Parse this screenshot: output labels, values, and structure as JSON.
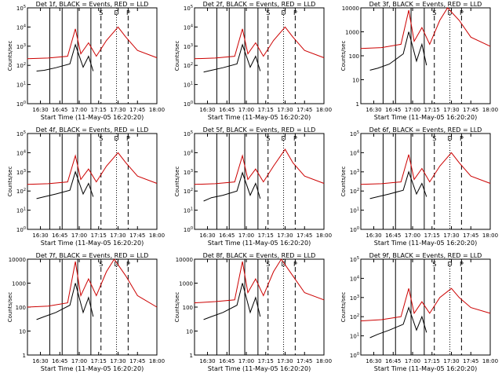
{
  "chart_data": [
    {
      "type": "line",
      "title": "Det 1f, BLACK = Events, RED = LLD",
      "xlabel": "Start Time (11-May-05 16:20:20)",
      "ylabel": "Counts/sec",
      "ylog": true,
      "ylim": [
        1,
        100000
      ],
      "yticks": [
        "10^0",
        "10^1",
        "10^2",
        "10^3",
        "10^4",
        "10^5"
      ],
      "xticks": [
        "16:30",
        "16:45",
        "17:00",
        "17:15",
        "17:30",
        "17:45",
        "18:00"
      ],
      "xlim": [
        16.333,
        18.0
      ],
      "series": [
        {
          "color": "#000000",
          "values": [
            [
              16.45,
              50
            ],
            [
              16.55,
              55
            ],
            [
              16.7,
              75
            ],
            [
              16.88,
              120
            ],
            [
              16.95,
              1200
            ],
            [
              17.05,
              80
            ],
            [
              17.12,
              300
            ],
            [
              17.18,
              50
            ]
          ]
        },
        {
          "color": "#cc0000",
          "values": [
            [
              16.33,
              220
            ],
            [
              16.6,
              240
            ],
            [
              16.85,
              300
            ],
            [
              16.95,
              8000
            ],
            [
              17.02,
              400
            ],
            [
              17.12,
              1500
            ],
            [
              17.22,
              300
            ],
            [
              17.35,
              2000
            ],
            [
              17.5,
              10000
            ],
            [
              17.6,
              3000
            ],
            [
              17.75,
              600
            ],
            [
              18.0,
              250
            ]
          ]
        }
      ]
    },
    {
      "type": "line",
      "title": "Det 2f, BLACK = Events, RED = LLD",
      "xlabel": "Start Time (11-May-05 16:20:20)",
      "ylabel": "Counts/sec",
      "ylog": true,
      "ylim": [
        1,
        100000
      ],
      "yticks": [
        "10^0",
        "10^1",
        "10^2",
        "10^3",
        "10^4",
        "10^5"
      ],
      "xticks": [
        "16:30",
        "16:45",
        "17:00",
        "17:15",
        "17:30",
        "17:45",
        "18:00"
      ],
      "xlim": [
        16.333,
        18.0
      ],
      "series": [
        {
          "color": "#000000",
          "values": [
            [
              16.45,
              45
            ],
            [
              16.55,
              55
            ],
            [
              16.7,
              75
            ],
            [
              16.88,
              120
            ],
            [
              16.95,
              1200
            ],
            [
              17.05,
              80
            ],
            [
              17.12,
              300
            ],
            [
              17.18,
              50
            ]
          ]
        },
        {
          "color": "#cc0000",
          "values": [
            [
              16.33,
              220
            ],
            [
              16.6,
              240
            ],
            [
              16.85,
              300
            ],
            [
              16.95,
              8000
            ],
            [
              17.02,
              400
            ],
            [
              17.12,
              1500
            ],
            [
              17.22,
              300
            ],
            [
              17.35,
              2000
            ],
            [
              17.5,
              10000
            ],
            [
              17.6,
              3000
            ],
            [
              17.75,
              600
            ],
            [
              18.0,
              250
            ]
          ]
        }
      ]
    },
    {
      "type": "line",
      "title": "Det 3f, BLACK = Events, RED = LLD",
      "xlabel": "Start Time (11-May-05 16:20:20)",
      "ylabel": "Counts/sec",
      "ylog": true,
      "ylim": [
        1,
        10000
      ],
      "yticks": [
        "1",
        "10",
        "100",
        "1000",
        "10000"
      ],
      "xticks": [
        "16:30",
        "16:45",
        "17:00",
        "17:15",
        "17:30",
        "17:45",
        "18:00"
      ],
      "xlim": [
        16.333,
        18.0
      ],
      "series": [
        {
          "color": "#000000",
          "values": [
            [
              16.45,
              25
            ],
            [
              16.55,
              30
            ],
            [
              16.7,
              45
            ],
            [
              16.88,
              120
            ],
            [
              16.95,
              1000
            ],
            [
              17.05,
              60
            ],
            [
              17.12,
              300
            ],
            [
              17.18,
              40
            ]
          ]
        },
        {
          "color": "#cc0000",
          "values": [
            [
              16.33,
              200
            ],
            [
              16.6,
              220
            ],
            [
              16.85,
              300
            ],
            [
              16.95,
              8000
            ],
            [
              17.02,
              400
            ],
            [
              17.12,
              1500
            ],
            [
              17.22,
              300
            ],
            [
              17.35,
              3000
            ],
            [
              17.45,
              10000
            ],
            [
              17.6,
              3000
            ],
            [
              17.75,
              600
            ],
            [
              18.0,
              250
            ]
          ]
        }
      ]
    },
    {
      "type": "line",
      "title": "Det 4f, BLACK = Events, RED = LLD",
      "xlabel": "Start Time (11-May-05 16:20:20)",
      "ylabel": "Counts/sec",
      "ylog": true,
      "ylim": [
        1,
        100000
      ],
      "yticks": [
        "10^0",
        "10^1",
        "10^2",
        "10^3",
        "10^4",
        "10^5"
      ],
      "xticks": [
        "16:30",
        "16:45",
        "17:00",
        "17:15",
        "17:30",
        "17:45",
        "18:00"
      ],
      "xlim": [
        16.333,
        18.0
      ],
      "series": [
        {
          "color": "#000000",
          "values": [
            [
              16.45,
              40
            ],
            [
              16.55,
              50
            ],
            [
              16.7,
              70
            ],
            [
              16.88,
              110
            ],
            [
              16.95,
              1000
            ],
            [
              17.05,
              70
            ],
            [
              17.12,
              250
            ],
            [
              17.18,
              50
            ]
          ]
        },
        {
          "color": "#cc0000",
          "values": [
            [
              16.33,
              220
            ],
            [
              16.6,
              240
            ],
            [
              16.85,
              300
            ],
            [
              16.95,
              7000
            ],
            [
              17.02,
              400
            ],
            [
              17.12,
              1400
            ],
            [
              17.22,
              300
            ],
            [
              17.35,
              2000
            ],
            [
              17.5,
              10000
            ],
            [
              17.6,
              3000
            ],
            [
              17.75,
              600
            ],
            [
              18.0,
              250
            ]
          ]
        }
      ]
    },
    {
      "type": "line",
      "title": "Det 5f, BLACK = Events, RED = LLD",
      "xlabel": "Start Time (11-May-05 16:20:20)",
      "ylabel": "Counts/sec",
      "ylog": true,
      "ylim": [
        1,
        100000
      ],
      "yticks": [
        "10^0",
        "10^1",
        "10^2",
        "10^3",
        "10^4",
        "10^5"
      ],
      "xticks": [
        "16:30",
        "16:45",
        "17:00",
        "17:15",
        "17:30",
        "17:45",
        "18:00"
      ],
      "xlim": [
        16.333,
        18.0
      ],
      "series": [
        {
          "color": "#000000",
          "values": [
            [
              16.45,
              30
            ],
            [
              16.55,
              45
            ],
            [
              16.7,
              60
            ],
            [
              16.88,
              100
            ],
            [
              16.95,
              900
            ],
            [
              17.05,
              60
            ],
            [
              17.12,
              250
            ],
            [
              17.18,
              40
            ]
          ]
        },
        {
          "color": "#cc0000",
          "values": [
            [
              16.33,
              220
            ],
            [
              16.6,
              240
            ],
            [
              16.85,
              300
            ],
            [
              16.95,
              7000
            ],
            [
              17.02,
              400
            ],
            [
              17.12,
              1400
            ],
            [
              17.22,
              300
            ],
            [
              17.35,
              2000
            ],
            [
              17.5,
              15000
            ],
            [
              17.6,
              3000
            ],
            [
              17.75,
              600
            ],
            [
              18.0,
              250
            ]
          ]
        }
      ]
    },
    {
      "type": "line",
      "title": "Det 6f, BLACK = Events, RED = LLD",
      "xlabel": "Start Time (11-May-05 16:20:20)",
      "ylabel": "Counts/sec",
      "ylog": true,
      "ylim": [
        1,
        100000
      ],
      "yticks": [
        "10^0",
        "10^1",
        "10^2",
        "10^3",
        "10^4",
        "10^5"
      ],
      "xticks": [
        "16:30",
        "16:45",
        "17:00",
        "17:15",
        "17:30",
        "17:45",
        "18:00"
      ],
      "xlim": [
        16.333,
        18.0
      ],
      "series": [
        {
          "color": "#000000",
          "values": [
            [
              16.45,
              40
            ],
            [
              16.55,
              50
            ],
            [
              16.7,
              70
            ],
            [
              16.88,
              110
            ],
            [
              16.95,
              1000
            ],
            [
              17.05,
              70
            ],
            [
              17.12,
              250
            ],
            [
              17.18,
              50
            ]
          ]
        },
        {
          "color": "#cc0000",
          "values": [
            [
              16.33,
              220
            ],
            [
              16.6,
              240
            ],
            [
              16.85,
              300
            ],
            [
              16.95,
              8000
            ],
            [
              17.02,
              400
            ],
            [
              17.12,
              1500
            ],
            [
              17.22,
              300
            ],
            [
              17.35,
              2000
            ],
            [
              17.5,
              10000
            ],
            [
              17.6,
              3000
            ],
            [
              17.75,
              600
            ],
            [
              18.0,
              250
            ]
          ]
        }
      ]
    },
    {
      "type": "line",
      "title": "Det 7f, BLACK = Events, RED = LLD",
      "xlabel": "Start Time (11-May-05 16:20:20)",
      "ylabel": "Counts/sec",
      "ylog": true,
      "ylim": [
        1,
        10000
      ],
      "yticks": [
        "1",
        "10",
        "100",
        "1000",
        "10000"
      ],
      "xticks": [
        "16:30",
        "16:45",
        "17:00",
        "17:15",
        "17:30",
        "17:45",
        "18:00"
      ],
      "xlim": [
        16.333,
        18.0
      ],
      "series": [
        {
          "color": "#000000",
          "values": [
            [
              16.45,
              30
            ],
            [
              16.55,
              40
            ],
            [
              16.7,
              60
            ],
            [
              16.88,
              120
            ],
            [
              16.95,
              1000
            ],
            [
              17.05,
              60
            ],
            [
              17.12,
              250
            ],
            [
              17.18,
              40
            ]
          ]
        },
        {
          "color": "#cc0000",
          "values": [
            [
              16.33,
              100
            ],
            [
              16.6,
              110
            ],
            [
              16.85,
              150
            ],
            [
              16.95,
              8000
            ],
            [
              17.02,
              300
            ],
            [
              17.12,
              1500
            ],
            [
              17.22,
              300
            ],
            [
              17.35,
              3000
            ],
            [
              17.45,
              10000
            ],
            [
              17.6,
              2000
            ],
            [
              17.75,
              300
            ],
            [
              18.0,
              100
            ]
          ]
        }
      ]
    },
    {
      "type": "line",
      "title": "Det 8f, BLACK = Events, RED = LLD",
      "xlabel": "Start Time (11-May-05 16:20:20)",
      "ylabel": "Counts/sec",
      "ylog": true,
      "ylim": [
        1,
        10000
      ],
      "yticks": [
        "1",
        "10",
        "100",
        "1000",
        "10000"
      ],
      "xticks": [
        "16:30",
        "16:45",
        "17:00",
        "17:15",
        "17:30",
        "17:45",
        "18:00"
      ],
      "xlim": [
        16.333,
        18.0
      ],
      "series": [
        {
          "color": "#000000",
          "values": [
            [
              16.45,
              30
            ],
            [
              16.55,
              40
            ],
            [
              16.7,
              60
            ],
            [
              16.88,
              120
            ],
            [
              16.95,
              1000
            ],
            [
              17.05,
              60
            ],
            [
              17.12,
              250
            ],
            [
              17.18,
              40
            ]
          ]
        },
        {
          "color": "#cc0000",
          "values": [
            [
              16.33,
              150
            ],
            [
              16.6,
              170
            ],
            [
              16.85,
              200
            ],
            [
              16.95,
              8000
            ],
            [
              17.02,
              400
            ],
            [
              17.12,
              1500
            ],
            [
              17.22,
              300
            ],
            [
              17.35,
              3000
            ],
            [
              17.45,
              10000
            ],
            [
              17.6,
              2000
            ],
            [
              17.75,
              400
            ],
            [
              18.0,
              200
            ]
          ]
        }
      ]
    },
    {
      "type": "line",
      "title": "Det 9f, BLACK = Events, RED = LLD",
      "xlabel": "Start Time (11-May-05 16:20:20)",
      "ylabel": "Counts/sec",
      "ylog": true,
      "ylim": [
        1,
        100000
      ],
      "yticks": [
        "10^0",
        "10^1",
        "10^2",
        "10^3",
        "10^4",
        "10^5"
      ],
      "xticks": [
        "16:30",
        "16:45",
        "17:00",
        "17:15",
        "17:30",
        "17:45",
        "18:00"
      ],
      "xlim": [
        16.333,
        18.0
      ],
      "series": [
        {
          "color": "#000000",
          "values": [
            [
              16.45,
              8
            ],
            [
              16.55,
              12
            ],
            [
              16.7,
              20
            ],
            [
              16.88,
              40
            ],
            [
              16.95,
              300
            ],
            [
              17.05,
              20
            ],
            [
              17.12,
              100
            ],
            [
              17.18,
              15
            ]
          ]
        },
        {
          "color": "#cc0000",
          "values": [
            [
              16.33,
              60
            ],
            [
              16.6,
              70
            ],
            [
              16.85,
              100
            ],
            [
              16.95,
              3000
            ],
            [
              17.02,
              150
            ],
            [
              17.12,
              600
            ],
            [
              17.22,
              150
            ],
            [
              17.35,
              1000
            ],
            [
              17.5,
              3000
            ],
            [
              17.6,
              1000
            ],
            [
              17.75,
              300
            ],
            [
              18.0,
              150
            ]
          ]
        }
      ]
    }
  ],
  "vlines_solid": [
    16.62,
    16.78,
    16.98,
    17.15
  ],
  "vlines_dashed": [
    17.28,
    17.63
  ],
  "vlines_dotted": [
    17.48
  ],
  "markers": [
    "S",
    "D",
    "P"
  ]
}
